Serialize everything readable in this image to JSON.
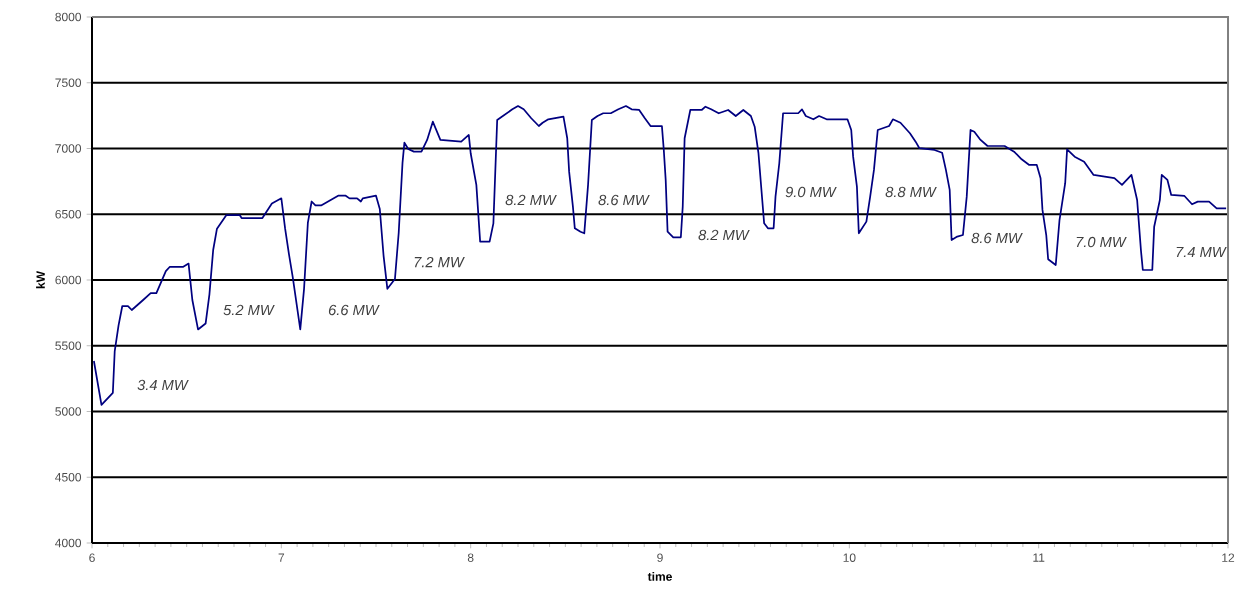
{
  "chart_data": {
    "type": "line",
    "xlabel": "time",
    "ylabel": "kW",
    "xlim": [
      6,
      12
    ],
    "xticks": [
      6,
      7,
      8,
      9,
      10,
      11,
      12
    ],
    "ylim": [
      4000,
      8000
    ],
    "yticks": [
      4000,
      4500,
      5000,
      5500,
      6000,
      6500,
      7000,
      7500,
      8000
    ],
    "grid": "y",
    "series": [
      {
        "color": "#000080",
        "x": [
          6.01,
          6.05,
          6.11,
          6.12,
          6.14,
          6.16,
          6.19,
          6.21,
          6.27,
          6.31,
          6.34,
          6.39,
          6.41,
          6.48,
          6.51,
          6.53,
          6.56,
          6.6,
          6.62,
          6.64,
          6.66,
          6.71,
          6.78,
          6.79,
          6.9,
          6.95,
          7.0,
          7.02,
          7.04,
          7.06,
          7.1,
          7.12,
          7.14,
          7.16,
          7.18,
          7.21,
          7.3,
          7.34,
          7.36,
          7.4,
          7.42,
          7.43,
          7.5,
          7.52,
          7.54,
          7.56,
          7.6,
          7.62,
          7.64,
          7.65,
          7.67,
          7.7,
          7.74,
          7.77,
          7.8,
          7.84,
          7.95,
          7.99,
          8.0,
          8.03,
          8.05,
          8.1,
          8.12,
          8.14,
          8.17,
          8.22,
          8.25,
          8.28,
          8.32,
          8.36,
          8.38,
          8.41,
          8.49,
          8.51,
          8.52,
          8.54,
          8.55,
          8.58,
          8.6,
          8.62,
          8.64,
          8.67,
          8.7,
          8.74,
          8.78,
          8.82,
          8.85,
          8.89,
          8.92,
          8.95,
          9.01,
          9.02,
          9.03,
          9.04,
          9.07,
          9.11,
          9.12,
          9.13,
          9.16,
          9.22,
          9.24,
          9.27,
          9.31,
          9.36,
          9.4,
          9.44,
          9.48,
          9.5,
          9.52,
          9.54,
          9.55,
          9.57,
          9.6,
          9.61,
          9.63,
          9.65,
          9.73,
          9.75,
          9.77,
          9.81,
          9.84,
          9.88,
          9.99,
          10.01,
          10.02,
          10.04,
          10.05,
          10.09,
          10.11,
          10.13,
          10.15,
          10.21,
          10.23,
          10.27,
          10.32,
          10.35,
          10.37,
          10.45,
          10.49,
          10.51,
          10.53,
          10.54,
          10.57,
          10.6,
          10.62,
          10.64,
          10.66,
          10.69,
          10.73,
          10.82,
          10.87,
          10.91,
          10.95,
          10.99,
          11.01,
          11.02,
          11.04,
          11.05,
          11.09,
          11.11,
          11.14,
          11.15,
          11.19,
          11.24,
          11.29,
          11.4,
          11.44,
          11.49,
          11.52,
          11.54,
          11.55,
          11.6,
          11.61,
          11.64,
          11.65,
          11.68,
          11.7,
          11.77,
          11.81,
          11.84,
          11.9,
          11.94,
          11.99
        ],
        "values": [
          5384,
          5050,
          5141,
          5460,
          5653,
          5802,
          5802,
          5772,
          5848,
          5900,
          5900,
          6068,
          6099,
          6099,
          6125,
          5848,
          5624,
          5669,
          5889,
          6228,
          6390,
          6494,
          6494,
          6471,
          6471,
          6582,
          6621,
          6390,
          6198,
          6023,
          5624,
          5933,
          6434,
          6597,
          6567,
          6567,
          6641,
          6641,
          6621,
          6621,
          6597,
          6621,
          6641,
          6540,
          6184,
          5933,
          6008,
          6361,
          6891,
          7045,
          6996,
          6976,
          6976,
          7065,
          7204,
          7065,
          7052,
          7103,
          6964,
          6723,
          6292,
          6292,
          6431,
          7217,
          7247,
          7298,
          7323,
          7298,
          7230,
          7171,
          7196,
          7222,
          7242,
          7078,
          6824,
          6558,
          6393,
          6367,
          6355,
          6723,
          7217,
          7247,
          7268,
          7268,
          7298,
          7323,
          7298,
          7293,
          7230,
          7171,
          7171,
          6989,
          6761,
          6367,
          6325,
          6325,
          6558,
          7078,
          7293,
          7293,
          7318,
          7298,
          7268,
          7293,
          7247,
          7293,
          7247,
          7166,
          6964,
          6608,
          6431,
          6393,
          6393,
          6634,
          6888,
          7268,
          7268,
          7298,
          7247,
          7222,
          7247,
          7222,
          7222,
          7141,
          6938,
          6710,
          6355,
          6444,
          6634,
          6837,
          7141,
          7171,
          7222,
          7196,
          7116,
          7052,
          7002,
          6989,
          6968,
          6837,
          6685,
          6304,
          6330,
          6342,
          6634,
          7141,
          7128,
          7070,
          7019,
          7019,
          6976,
          6918,
          6875,
          6875,
          6774,
          6533,
          6342,
          6158,
          6114,
          6456,
          6736,
          6994,
          6938,
          6900,
          6799,
          6774,
          6723,
          6799,
          6608,
          6228,
          6076,
          6076,
          6405,
          6608,
          6799,
          6761,
          6647,
          6639,
          6576,
          6596,
          6596,
          6545,
          6545
        ]
      }
    ],
    "annotations": [
      "3.4 MW",
      "5.2 MW",
      "6.6 MW",
      "7.2  MW",
      "8.2 MW",
      "8.6 MW",
      "8.2 MW",
      "9.0 MW",
      "8.8 MW",
      "8.6 MW",
      "7.0 MW",
      "7.4 MW"
    ]
  }
}
